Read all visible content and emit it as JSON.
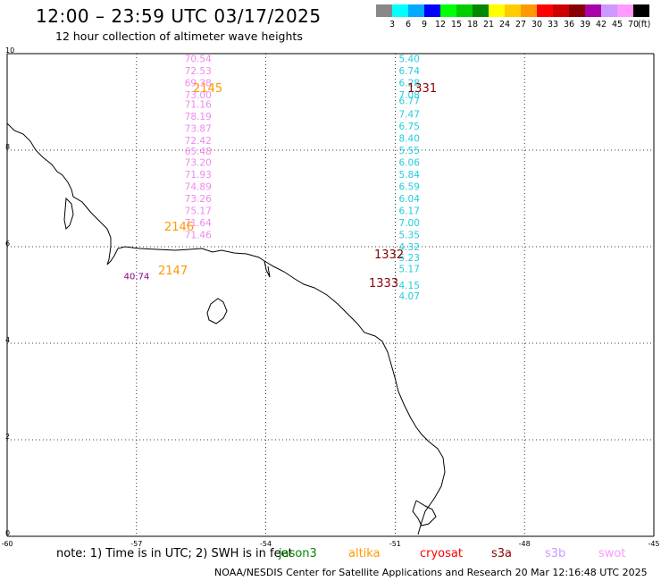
{
  "header": {
    "title": "12:00 – 23:59 UTC 03/17/2025",
    "subtitle": "12 hour collection of altimeter wave heights"
  },
  "legend": {
    "unit": "(ft)",
    "bins": [
      {
        "label": "3",
        "color": "#888888"
      },
      {
        "label": "6",
        "color": "#00ffff"
      },
      {
        "label": "9",
        "color": "#00aaff"
      },
      {
        "label": "12",
        "color": "#0000ff"
      },
      {
        "label": "15",
        "color": "#00ff00"
      },
      {
        "label": "18",
        "color": "#00cc00"
      },
      {
        "label": "21",
        "color": "#008800"
      },
      {
        "label": "24",
        "color": "#ffff00"
      },
      {
        "label": "27",
        "color": "#ffcc00"
      },
      {
        "label": "30",
        "color": "#ff9900"
      },
      {
        "label": "33",
        "color": "#ff0000"
      },
      {
        "label": "36",
        "color": "#cc0000"
      },
      {
        "label": "39",
        "color": "#880000"
      },
      {
        "label": "42",
        "color": "#aa00aa"
      },
      {
        "label": "45",
        "color": "#cc99ff"
      },
      {
        "label": "70",
        "color": "#ff99ff"
      },
      {
        "label": "",
        "color": "#000000"
      }
    ]
  },
  "map": {
    "lon_ticks": [
      "-60",
      "-57",
      "-54",
      "-51",
      "-48",
      "-45"
    ],
    "lat_ticks": [
      "0",
      "2",
      "4",
      "6",
      "8",
      "10"
    ],
    "lon_range": [
      -60,
      -45
    ],
    "lat_range": [
      0,
      10
    ],
    "tracks": [
      {
        "lon": -55.8,
        "color": "#ee88ee",
        "values": [
          {
            "text": "70.54",
            "lat": 9.9
          },
          {
            "text": "72.53",
            "lat": 9.65
          },
          {
            "text": "69.38",
            "lat": 9.4
          },
          {
            "text": "73.00",
            "lat": 9.15
          },
          {
            "text": "71.16",
            "lat": 8.95
          },
          {
            "text": "78.19",
            "lat": 8.7
          },
          {
            "text": "73.87",
            "lat": 8.45
          },
          {
            "text": "72.42",
            "lat": 8.2
          },
          {
            "text": "65.48",
            "lat": 7.98
          },
          {
            "text": "73.20",
            "lat": 7.75
          },
          {
            "text": "71.93",
            "lat": 7.5
          },
          {
            "text": "74.89",
            "lat": 7.25
          },
          {
            "text": "73.26",
            "lat": 7.0
          },
          {
            "text": "75.17",
            "lat": 6.75
          },
          {
            "text": "71.64",
            "lat": 6.5
          },
          {
            "text": "71.46",
            "lat": 6.25
          }
        ]
      },
      {
        "lon": -50.9,
        "color": "#22ccdd",
        "values": [
          {
            "text": "5.40",
            "lat": 9.9
          },
          {
            "text": "6.74",
            "lat": 9.65
          },
          {
            "text": "6.28",
            "lat": 9.4
          },
          {
            "text": "7.08",
            "lat": 9.15
          },
          {
            "text": "6.77",
            "lat": 9.03
          },
          {
            "text": "7.47",
            "lat": 8.75
          },
          {
            "text": "6.75",
            "lat": 8.5
          },
          {
            "text": "8.40",
            "lat": 8.25
          },
          {
            "text": "5.55",
            "lat": 8.0
          },
          {
            "text": "6.06",
            "lat": 7.75
          },
          {
            "text": "5.84",
            "lat": 7.5
          },
          {
            "text": "6.59",
            "lat": 7.25
          },
          {
            "text": "6.04",
            "lat": 7.0
          },
          {
            "text": "6.17",
            "lat": 6.75
          },
          {
            "text": "7.00",
            "lat": 6.5
          },
          {
            "text": "5.35",
            "lat": 6.25
          },
          {
            "text": "4.32",
            "lat": 6.0
          },
          {
            "text": "5.23",
            "lat": 5.78
          },
          {
            "text": "5.17",
            "lat": 5.55
          },
          {
            "text": "4.15",
            "lat": 5.2
          },
          {
            "text": "4.07",
            "lat": 4.98
          }
        ]
      }
    ],
    "extra_value": {
      "text": "40.74",
      "lat": 5.4,
      "color": "#880088"
    },
    "passes": [
      {
        "id": "2145",
        "color": "#ff9900"
      },
      {
        "id": "2146",
        "color": "#ff9900"
      },
      {
        "id": "2147",
        "color": "#ff9900"
      },
      {
        "id": "1331",
        "color": "#880000"
      },
      {
        "id": "1332",
        "color": "#880000"
      },
      {
        "id": "1333",
        "color": "#880000"
      }
    ]
  },
  "footer": {
    "note": "note:  1) Time is in UTC;  2) SWH is in feet",
    "satellites": [
      {
        "name": "jason3",
        "color": "#008800"
      },
      {
        "name": "altika",
        "color": "#ff9900"
      },
      {
        "name": "cryosat",
        "color": "#ff0000"
      },
      {
        "name": "s3a",
        "color": "#880000"
      },
      {
        "name": "s3b",
        "color": "#cc99ff"
      },
      {
        "name": "swot",
        "color": "#ff99ff"
      }
    ],
    "credit": "NOAA/NESDIS Center for Satellite Applications and Research     20 Mar 12:16:48 UTC 2025"
  }
}
